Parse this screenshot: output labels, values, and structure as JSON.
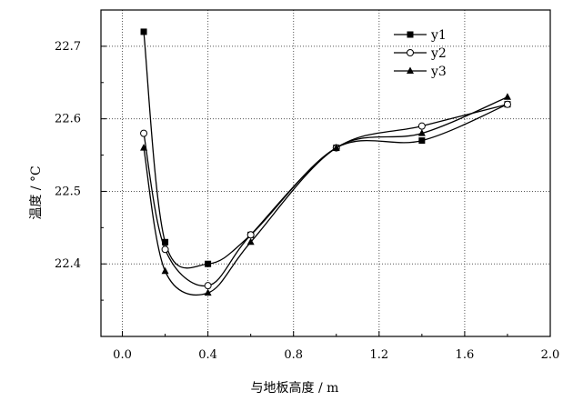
{
  "chart_data": {
    "type": "line",
    "xlabel": "与地板高度 / m",
    "ylabel": "温度 / °C",
    "xlim": [
      -0.1,
      2.0
    ],
    "ylim": [
      22.3,
      22.75
    ],
    "x_ticks": [
      0.0,
      0.4,
      0.8,
      1.2,
      1.6,
      2.0
    ],
    "x_tick_labels": [
      "0.0",
      "0.4",
      "0.8",
      "1.2",
      "1.6",
      "2.0"
    ],
    "y_ticks": [
      22.4,
      22.5,
      22.6,
      22.7
    ],
    "y_tick_labels": [
      "22.4",
      "22.5",
      "22.6",
      "22.7"
    ],
    "grid": "dotted",
    "legend_position": "top-right",
    "series": [
      {
        "name": "y1",
        "marker": "square-filled",
        "x": [
          0.1,
          0.2,
          0.4,
          0.6,
          1.0,
          1.4,
          1.8
        ],
        "y": [
          22.72,
          22.43,
          22.4,
          22.44,
          22.56,
          22.57,
          22.62
        ]
      },
      {
        "name": "y2",
        "marker": "circle-open",
        "x": [
          0.1,
          0.2,
          0.4,
          0.6,
          1.0,
          1.4,
          1.8
        ],
        "y": [
          22.58,
          22.42,
          22.37,
          22.44,
          22.56,
          22.59,
          22.62
        ]
      },
      {
        "name": "y3",
        "marker": "triangle-filled",
        "x": [
          0.1,
          0.2,
          0.4,
          0.6,
          1.0,
          1.4,
          1.8
        ],
        "y": [
          22.56,
          22.39,
          22.36,
          22.43,
          22.56,
          22.58,
          22.63
        ]
      }
    ]
  }
}
